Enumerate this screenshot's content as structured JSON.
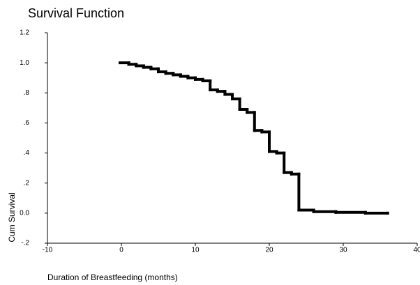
{
  "chart_data": {
    "type": "line",
    "step": "post",
    "title": "Survival Function",
    "x_label": "Duration of Breastfeeding (months)",
    "y_label": "Cum Survival",
    "xlim": [
      -10,
      40
    ],
    "xticks": [
      -10,
      0,
      10,
      20,
      30,
      40
    ],
    "ylim": [
      -0.2,
      1.2
    ],
    "yticks": [
      {
        "value": -0.2,
        "label": "-.2"
      },
      {
        "value": 0,
        "label": "0.0"
      },
      {
        "value": 0.2,
        "label": ".2"
      },
      {
        "value": 0.4,
        "label": ".4"
      },
      {
        "value": 0.6,
        "label": ".6"
      },
      {
        "value": 0.8,
        "label": ".8"
      },
      {
        "value": 1,
        "label": "1.0"
      },
      1.2
    ],
    "grid": false,
    "series": [
      {
        "color": "#000000",
        "x": [
          0,
          1,
          2,
          3,
          4,
          5,
          6,
          7,
          8,
          9,
          10,
          11,
          12,
          13,
          14,
          15,
          16,
          17,
          18,
          19,
          20,
          21,
          22,
          23,
          24,
          26,
          29,
          33,
          36
        ],
        "values": [
          1.0,
          0.99,
          0.98,
          0.97,
          0.96,
          0.94,
          0.93,
          0.92,
          0.91,
          0.9,
          0.89,
          0.88,
          0.82,
          0.81,
          0.79,
          0.76,
          0.69,
          0.67,
          0.55,
          0.54,
          0.41,
          0.4,
          0.27,
          0.26,
          0.02,
          0.01,
          0.005,
          0.0,
          0.0
        ]
      }
    ]
  }
}
